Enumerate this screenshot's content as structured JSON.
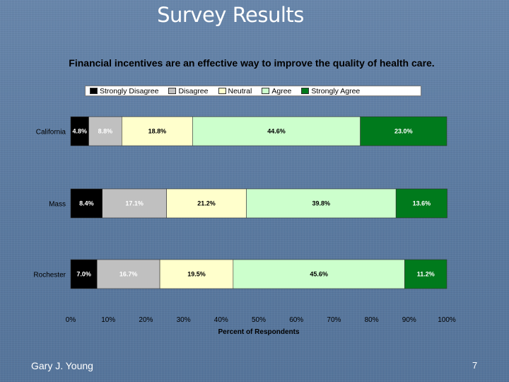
{
  "slide": {
    "title": "Survey Results",
    "footer_author": "Gary J. Young",
    "page_number": "7"
  },
  "chart_data": {
    "type": "bar",
    "orientation": "horizontal",
    "stacked": true,
    "title": "Financial incentives are an effective way to improve the quality of health care.",
    "xlabel": "Percent of Respondents",
    "xlim": [
      0,
      100
    ],
    "x_ticks": [
      "0%",
      "10%",
      "20%",
      "30%",
      "40%",
      "50%",
      "60%",
      "70%",
      "80%",
      "90%",
      "100%"
    ],
    "legend_position": "top",
    "categories": [
      "California",
      "Mass",
      "Rochester"
    ],
    "series": [
      {
        "name": "Strongly Disagree",
        "color": "#000000",
        "label_color": "#ffffff",
        "values": [
          4.8,
          8.4,
          7.0
        ],
        "labels": [
          "4.8%",
          "8.4%",
          "7.0%"
        ]
      },
      {
        "name": "Disagree",
        "color": "#c0c0c0",
        "label_color": "#ffffff",
        "values": [
          8.8,
          17.1,
          16.7
        ],
        "labels": [
          "8.8%",
          "17.1%",
          "16.7%"
        ]
      },
      {
        "name": "Neutral",
        "color": "#ffffcc",
        "label_color": "#000000",
        "values": [
          18.8,
          21.2,
          19.5
        ],
        "labels": [
          "18.8%",
          "21.2%",
          "19.5%"
        ]
      },
      {
        "name": "Agree",
        "color": "#ccffcc",
        "label_color": "#000000",
        "values": [
          44.6,
          39.8,
          45.6
        ],
        "labels": [
          "44.6%",
          "39.8%",
          "45.6%"
        ]
      },
      {
        "name": "Strongly Agree",
        "color": "#007a1c",
        "label_color": "#ffffff",
        "values": [
          23.0,
          13.6,
          11.2
        ],
        "labels": [
          "23.0%",
          "13.6%",
          "11.2%"
        ]
      }
    ]
  }
}
